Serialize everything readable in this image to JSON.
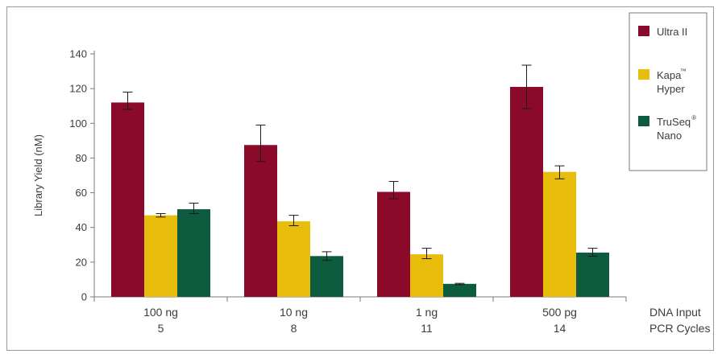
{
  "chart_data": {
    "type": "bar",
    "title": "",
    "ylabel": "Library Yield (nM)",
    "xlabel_lines": [
      "DNA Input",
      "PCR Cycles"
    ],
    "categories": [
      {
        "input": "100 ng",
        "cycles": "5"
      },
      {
        "input": "10 ng",
        "cycles": "8"
      },
      {
        "input": "1 ng",
        "cycles": "11"
      },
      {
        "input": "500 pg",
        "cycles": "14"
      }
    ],
    "ylim": [
      0,
      140
    ],
    "yticks": [
      0,
      20,
      40,
      60,
      80,
      100,
      120,
      140
    ],
    "grid": false,
    "legend_position": "top-right",
    "series": [
      {
        "name": "Ultra II",
        "color": "#8b0a2a",
        "values": [
          112,
          87.5,
          60.5,
          121
        ],
        "err_low": [
          108,
          78,
          56.5,
          108.5
        ],
        "err_high": [
          118,
          99,
          66.5,
          133.5
        ]
      },
      {
        "name": "Kapa™ Hyper",
        "legend_lines": [
          "Kapa",
          "Hyper"
        ],
        "legend_sup": "™",
        "color": "#e8bd0b",
        "values": [
          47,
          43.5,
          24.5,
          72
        ],
        "err_low": [
          46,
          41,
          22,
          68
        ],
        "err_high": [
          48,
          47,
          28,
          75.5
        ]
      },
      {
        "name": "TruSeq® Nano",
        "legend_lines": [
          "TruSeq",
          "Nano"
        ],
        "legend_sup": "®",
        "color": "#0d5c3f",
        "values": [
          50.5,
          23.5,
          7.5,
          25.5
        ],
        "err_low": [
          48,
          21,
          7,
          23.5
        ],
        "err_high": [
          54,
          26,
          7.8,
          28
        ]
      }
    ]
  }
}
